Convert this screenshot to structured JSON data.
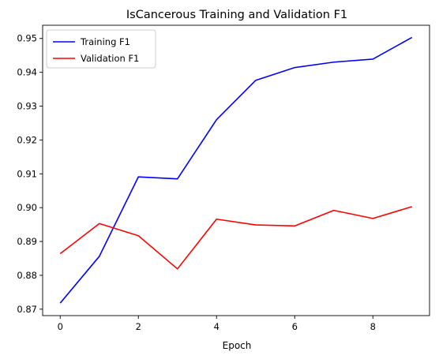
{
  "chart_data": {
    "type": "line",
    "title": "IsCancerous Training and Validation F1",
    "xlabel": "Epoch",
    "ylabel": "",
    "xlim": [
      -0.45,
      9.45
    ],
    "ylim": [
      0.8681,
      0.9539
    ],
    "x": [
      0,
      1,
      2,
      3,
      4,
      5,
      6,
      7,
      8,
      9
    ],
    "x_ticks": [
      0,
      2,
      4,
      6,
      8
    ],
    "x_tick_labels": [
      "0",
      "2",
      "4",
      "6",
      "8"
    ],
    "y_ticks": [
      0.87,
      0.88,
      0.89,
      0.9,
      0.91,
      0.92,
      0.93,
      0.94,
      0.95
    ],
    "y_tick_labels": [
      "0.87",
      "0.88",
      "0.89",
      "0.90",
      "0.91",
      "0.92",
      "0.93",
      "0.94",
      "0.95"
    ],
    "grid": false,
    "legend_position": "upper-left",
    "series": [
      {
        "name": "Training F1",
        "color": "#0000ff",
        "values": [
          0.8718,
          0.8856,
          0.9091,
          0.9085,
          0.926,
          0.9376,
          0.9414,
          0.943,
          0.9439,
          0.9503
        ]
      },
      {
        "name": "Validation F1",
        "color": "#ff0000",
        "values": [
          0.8864,
          0.8953,
          0.8917,
          0.8819,
          0.8966,
          0.8949,
          0.8946,
          0.8992,
          0.8968,
          0.9003
        ]
      }
    ]
  }
}
